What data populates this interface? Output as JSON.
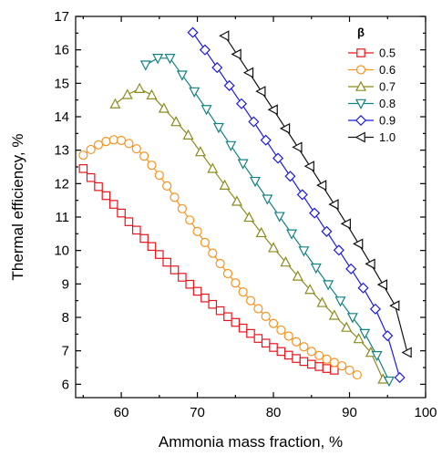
{
  "chart_data": {
    "type": "line",
    "title": "",
    "xlabel": "Ammonia mass fraction, %",
    "ylabel": "Thermal efficiency, %",
    "xlim": [
      54,
      100
    ],
    "ylim": [
      5.6,
      17
    ],
    "x_ticks": [
      60,
      70,
      80,
      90,
      100
    ],
    "y_ticks": [
      6,
      7,
      8,
      9,
      10,
      11,
      12,
      13,
      14,
      15,
      16,
      17
    ],
    "grid": false,
    "legend": {
      "title": "β",
      "placement": "top-right"
    },
    "series": [
      {
        "name": "0.5",
        "color": "#e8141c",
        "marker": "square",
        "x": [
          55,
          56,
          57,
          58,
          59,
          60,
          61,
          62,
          63,
          64,
          65,
          66,
          67,
          68,
          69,
          70,
          71,
          72,
          73,
          74,
          75,
          76,
          77,
          78,
          79,
          80,
          81,
          82,
          83,
          84,
          85,
          86,
          87,
          88
        ],
        "y": [
          12.45,
          12.18,
          11.91,
          11.64,
          11.38,
          11.12,
          10.86,
          10.61,
          10.36,
          10.12,
          9.88,
          9.65,
          9.42,
          9.2,
          8.99,
          8.78,
          8.58,
          8.39,
          8.2,
          8.02,
          7.85,
          7.68,
          7.52,
          7.37,
          7.23,
          7.1,
          6.98,
          6.87,
          6.77,
          6.68,
          6.6,
          6.53,
          6.47,
          6.42
        ]
      },
      {
        "name": "0.6",
        "color": "#f7931e",
        "marker": "circle",
        "x": [
          55,
          56,
          57,
          58,
          59,
          60,
          61,
          62,
          63,
          64,
          65,
          66,
          67,
          68,
          69,
          70,
          71,
          72,
          73,
          74,
          75,
          76,
          77,
          78,
          79,
          80,
          81,
          82,
          83,
          84,
          85,
          86,
          87,
          88,
          89,
          90,
          91
        ],
        "y": [
          12.85,
          13.02,
          13.16,
          13.26,
          13.31,
          13.29,
          13.2,
          13.04,
          12.82,
          12.55,
          12.25,
          11.93,
          11.59,
          11.25,
          10.91,
          10.57,
          10.24,
          9.92,
          9.61,
          9.31,
          9.03,
          8.76,
          8.5,
          8.26,
          8.03,
          7.82,
          7.62,
          7.44,
          7.27,
          7.12,
          6.98,
          6.86,
          6.75,
          6.65,
          6.55,
          6.42,
          6.28
        ]
      },
      {
        "name": "0.7",
        "color": "#8c8c1e",
        "marker": "triangle-up",
        "x": [
          59.2,
          60.8,
          62.4,
          64,
          65.6,
          67.2,
          68.8,
          70.4,
          72,
          73.6,
          75.2,
          76.8,
          78.4,
          80,
          81.6,
          83.2,
          84.8,
          86.4,
          88,
          89.6,
          91.2,
          92.8,
          94.4
        ],
        "y": [
          14.38,
          14.66,
          14.84,
          14.65,
          14.25,
          13.85,
          13.45,
          12.95,
          12.45,
          11.95,
          11.47,
          10.99,
          10.53,
          10.08,
          9.65,
          9.23,
          8.83,
          8.44,
          8.06,
          7.7,
          7.36,
          6.95,
          6.15
        ]
      },
      {
        "name": "0.8",
        "color": "#138282",
        "marker": "triangle-down",
        "x": [
          63.2,
          64.8,
          66.4,
          68,
          69.6,
          71.2,
          72.8,
          74.4,
          76,
          77.6,
          79.2,
          80.8,
          82.4,
          84,
          85.6,
          87.2,
          88.8,
          90.4,
          92,
          93.6,
          95.2
        ],
        "y": [
          15.55,
          15.75,
          15.75,
          15.25,
          14.75,
          14.22,
          13.68,
          13.14,
          12.6,
          12.07,
          11.54,
          11.02,
          10.5,
          9.99,
          9.48,
          8.98,
          8.49,
          8.0,
          7.52,
          6.86,
          6.1
        ]
      },
      {
        "name": "0.9",
        "color": "#1c1cdc",
        "marker": "diamond",
        "x": [
          69.4,
          71,
          72.6,
          74.2,
          75.8,
          77.4,
          79,
          80.6,
          82.2,
          83.8,
          85.4,
          87,
          88.6,
          90.2,
          91.8,
          93.4,
          95,
          96.6
        ],
        "y": [
          16.52,
          16.0,
          15.47,
          14.93,
          14.39,
          13.85,
          13.3,
          12.76,
          12.22,
          11.67,
          11.12,
          10.57,
          10.01,
          9.45,
          8.88,
          8.25,
          7.45,
          6.2
        ]
      },
      {
        "name": "1.0",
        "color": "#111111",
        "marker": "triangle-left",
        "x": [
          73.6,
          75.2,
          76.8,
          78.4,
          80,
          81.6,
          83.2,
          84.8,
          86.4,
          88,
          89.6,
          91.2,
          92.8,
          94.4,
          96,
          97.6
        ],
        "y": [
          16.42,
          15.87,
          15.32,
          14.76,
          14.21,
          13.65,
          13.09,
          12.52,
          11.95,
          11.38,
          10.8,
          10.2,
          9.6,
          8.98,
          8.35,
          6.95
        ]
      }
    ]
  }
}
